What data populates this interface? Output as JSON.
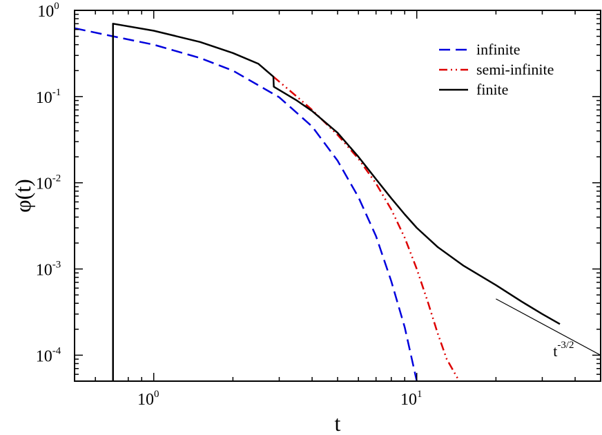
{
  "chart_data": {
    "type": "line",
    "title": "",
    "xlabel": "t",
    "ylabel": "φ(t)",
    "xscale": "log",
    "yscale": "log",
    "xlim": [
      0.5,
      50
    ],
    "ylim": [
      5e-05,
      1
    ],
    "grid": false,
    "legend_position": "top-right",
    "x_ticks": [
      {
        "base": "10",
        "exp": "0",
        "value": 1
      },
      {
        "base": "10",
        "exp": "1",
        "value": 10
      }
    ],
    "y_ticks": [
      {
        "base": "10",
        "exp": "0",
        "value": 1
      },
      {
        "base": "10",
        "exp": "-1",
        "value": 0.1
      },
      {
        "base": "10",
        "exp": "-2",
        "value": 0.01
      },
      {
        "base": "10",
        "exp": "-3",
        "value": 0.001
      },
      {
        "base": "10",
        "exp": "-4",
        "value": 0.0001
      }
    ],
    "series": [
      {
        "name": "infinite",
        "color": "#0000dd",
        "style": "dashed",
        "points": [
          [
            0.5,
            0.62
          ],
          [
            0.7,
            0.5
          ],
          [
            1,
            0.4
          ],
          [
            1.5,
            0.28
          ],
          [
            2,
            0.2
          ],
          [
            3,
            0.098
          ],
          [
            4,
            0.045
          ],
          [
            5,
            0.018
          ],
          [
            6,
            0.0068
          ],
          [
            7,
            0.0024
          ],
          [
            8,
            0.00072
          ],
          [
            9,
            0.00021
          ],
          [
            10,
            5e-05
          ]
        ]
      },
      {
        "name": "semi-infinite",
        "color": "#dd0000",
        "style": "dash-dot-dot",
        "points": [
          [
            2.85,
            0.17
          ],
          [
            3.5,
            0.1
          ],
          [
            4,
            0.07
          ],
          [
            5,
            0.036
          ],
          [
            6,
            0.019
          ],
          [
            7,
            0.0098
          ],
          [
            8,
            0.0049
          ],
          [
            9,
            0.0023
          ],
          [
            10,
            0.001
          ],
          [
            11,
            0.00042
          ],
          [
            12,
            0.00018
          ],
          [
            13,
            9e-05
          ],
          [
            14.5,
            5e-05
          ]
        ]
      },
      {
        "name": "finite",
        "color": "#000000",
        "style": "solid",
        "points": [
          [
            0.7,
            5e-05
          ],
          [
            0.7,
            0.7
          ],
          [
            1,
            0.58
          ],
          [
            1.5,
            0.43
          ],
          [
            2,
            0.32
          ],
          [
            2.5,
            0.24
          ],
          [
            2.85,
            0.17
          ],
          [
            2.86,
            0.13
          ],
          [
            3.5,
            0.09
          ],
          [
            4,
            0.068
          ],
          [
            5,
            0.038
          ],
          [
            6,
            0.02
          ],
          [
            7,
            0.011
          ],
          [
            8,
            0.0066
          ],
          [
            9,
            0.0043
          ],
          [
            10,
            0.003
          ],
          [
            12,
            0.0018
          ],
          [
            15,
            0.0011
          ],
          [
            20,
            0.00065
          ],
          [
            25,
            0.00042
          ],
          [
            30,
            0.0003
          ],
          [
            35,
            0.00023
          ]
        ]
      }
    ],
    "reference_line": {
      "points": [
        [
          20,
          0.00045
        ],
        [
          50,
          0.0001
        ]
      ],
      "color": "#000000"
    },
    "annotation": {
      "text": "t",
      "exp": "-3/2",
      "at": [
        33,
        0.00013
      ]
    }
  }
}
